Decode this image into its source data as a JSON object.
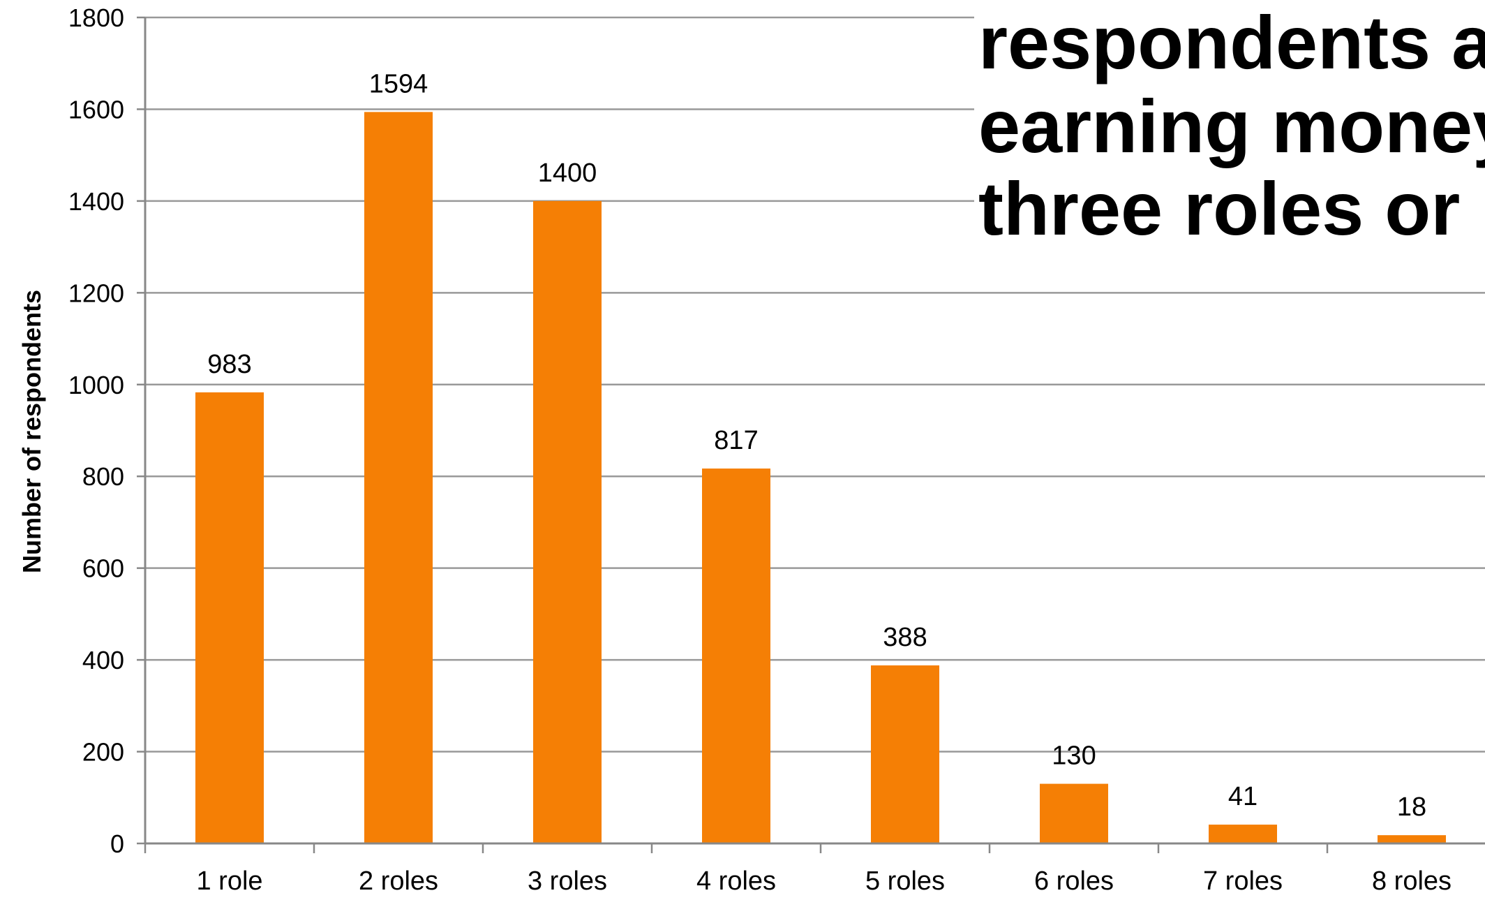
{
  "chart_data": {
    "type": "bar",
    "title_lines": [
      "respondents ar",
      "earning money",
      "three roles or m"
    ],
    "xlabel": "",
    "ylabel": "Number of respondents",
    "categories": [
      "1 role",
      "2 roles",
      "3 roles",
      "4 roles",
      "5 roles",
      "6 roles",
      "7 roles",
      "8 roles"
    ],
    "values": [
      983,
      1594,
      1400,
      817,
      388,
      130,
      41,
      18
    ],
    "data_labels": [
      "983",
      "1594",
      "1400",
      "817",
      "388",
      "130",
      "41",
      "18"
    ],
    "yticks": [
      "0",
      "200",
      "400",
      "600",
      "800",
      "1000",
      "1200",
      "1400",
      "1600",
      "1800"
    ],
    "ylim": [
      0,
      1800
    ],
    "grid": true,
    "legend": "none",
    "bar_color": "#F57F05",
    "grid_color": "#999999"
  }
}
